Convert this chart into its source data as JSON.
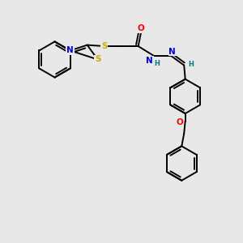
{
  "bg_color": "#e8e8e8",
  "atom_colors": {
    "S": "#ccaa00",
    "N": "#0000ff",
    "O": "#ff0000",
    "C": "#000000",
    "H": "#008080"
  },
  "bond_color": "#000000",
  "bond_width": 1.4,
  "font_size": 7.5
}
